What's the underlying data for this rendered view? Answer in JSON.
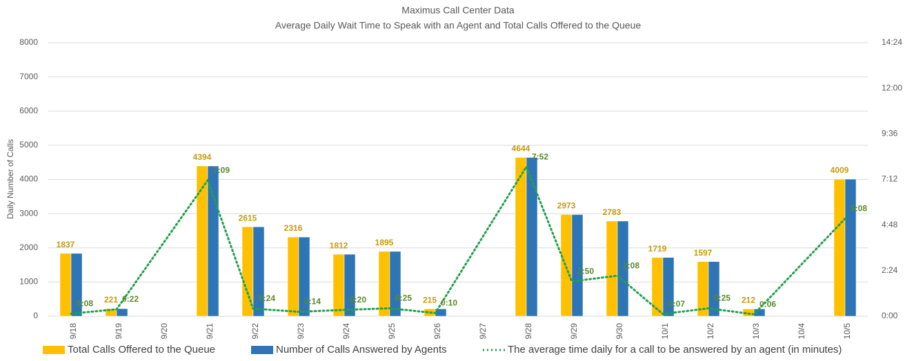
{
  "chart_data": {
    "type": "bar-line",
    "title": "Maximus Call Center Data",
    "subtitle": "Average Daily Wait Time to Speak with an Agent and Total Calls Offered to the Queue",
    "y_label": "Daily Number of Calls",
    "categories": [
      "9/18",
      "9/19",
      "9/20",
      "9/21",
      "9/22",
      "9/23",
      "9/24",
      "9/25",
      "9/26",
      "9/27",
      "9/28",
      "9/29",
      "9/30",
      "10/1",
      "10/2",
      "10/3",
      "10/4",
      "10/5"
    ],
    "series": [
      {
        "name": "Total Calls Offered to the Queue",
        "color": "#ffc000",
        "label_color": "#c79a0c",
        "data_labels": true,
        "values": [
          1837,
          221,
          null,
          4394,
          2615,
          2316,
          1812,
          1895,
          215,
          null,
          4644,
          2973,
          2783,
          1719,
          1597,
          212,
          null,
          4009
        ]
      },
      {
        "name": "Number of Calls Answered by Agents",
        "color": "#2e75b6",
        "data_labels": false,
        "values": [
          1837,
          221,
          null,
          4394,
          2615,
          2316,
          1812,
          1895,
          215,
          null,
          4644,
          2973,
          2783,
          1719,
          1597,
          212,
          null,
          4009
        ]
      },
      {
        "name": "The average time daily for a call to be answered by an agent (in minutes)",
        "color": "#22a04b",
        "label_color": "#5a8a2a",
        "type": "line",
        "axis": "y2",
        "dotted": true,
        "connect_gaps": true,
        "values": [
          8,
          22,
          null,
          429,
          24,
          14,
          20,
          25,
          10,
          null,
          472,
          110,
          128,
          7,
          25,
          6,
          null,
          308
        ],
        "value_labels": [
          "0:08",
          "0:22",
          null,
          "7:09",
          "0:24",
          "0:14",
          "0:20",
          "0:25",
          "0:10",
          null,
          "7:52",
          "1:50",
          "2:08",
          "0:07",
          "0:25",
          "0:06",
          null,
          "5:08"
        ]
      }
    ],
    "ylim": [
      0,
      8000
    ],
    "yticks": [
      0,
      1000,
      2000,
      3000,
      4000,
      5000,
      6000,
      7000,
      8000
    ],
    "y2lim": [
      0,
      864
    ],
    "y2ticks": [
      {
        "value": 0,
        "label": "0:00"
      },
      {
        "value": 144,
        "label": "2:24"
      },
      {
        "value": 288,
        "label": "4:48"
      },
      {
        "value": 432,
        "label": "7:12"
      },
      {
        "value": 576,
        "label": "9:36"
      },
      {
        "value": 720,
        "label": "12:00"
      },
      {
        "value": 864,
        "label": "14:24"
      }
    ],
    "grid": true
  }
}
